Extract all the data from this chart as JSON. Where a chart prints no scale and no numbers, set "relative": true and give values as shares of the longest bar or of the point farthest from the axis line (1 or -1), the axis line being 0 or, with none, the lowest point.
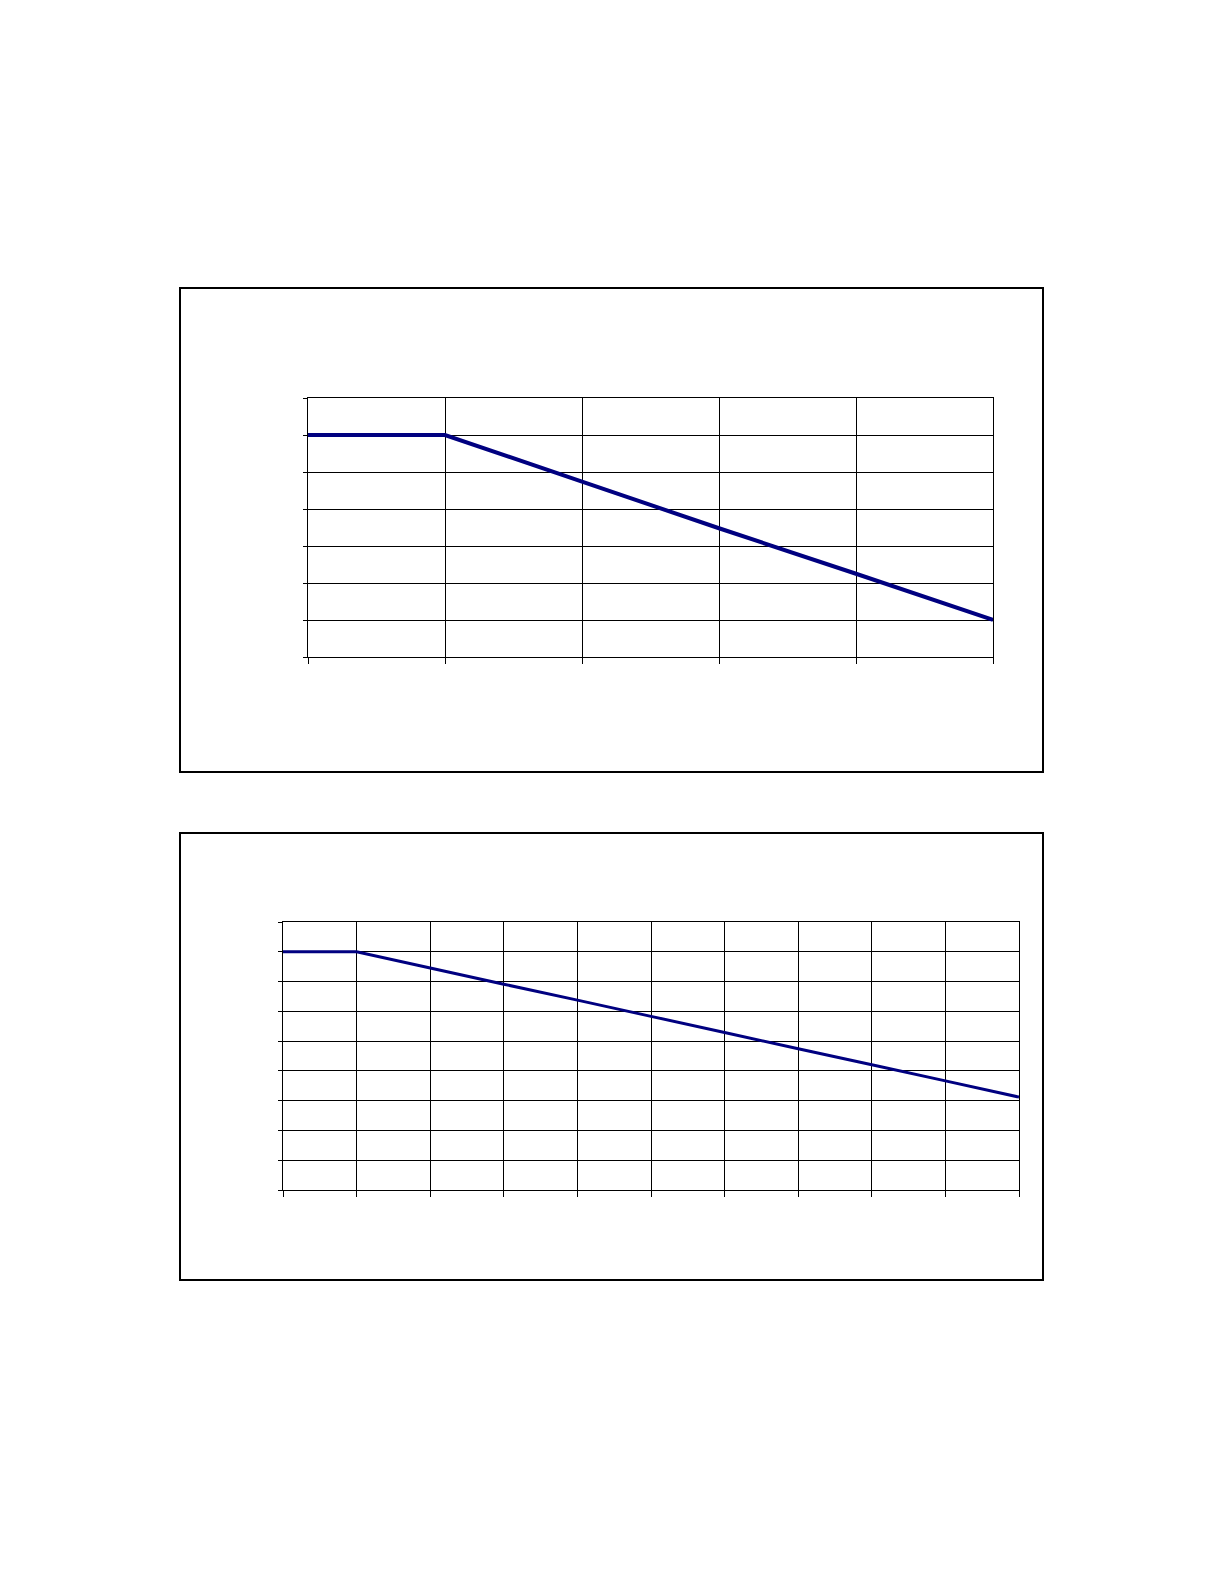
{
  "chart_data": [
    {
      "type": "line",
      "relative": true,
      "grid": true,
      "categories": [
        null,
        null,
        null,
        null,
        null,
        null
      ],
      "series": [
        {
          "color": "#000080",
          "values": [
            1,
            1,
            0.79,
            0.58,
            0.375,
            0.167
          ]
        }
      ]
    },
    {
      "type": "line",
      "relative": true,
      "grid": true,
      "categories": [
        null,
        null,
        null,
        null,
        null,
        null,
        null,
        null,
        null,
        null,
        null
      ],
      "series": [
        {
          "color": "#000080",
          "values": [
            1,
            1,
            0.932,
            0.864,
            0.797,
            0.729,
            0.661,
            0.593,
            0.526,
            0.458,
            0.39
          ]
        }
      ]
    }
  ]
}
